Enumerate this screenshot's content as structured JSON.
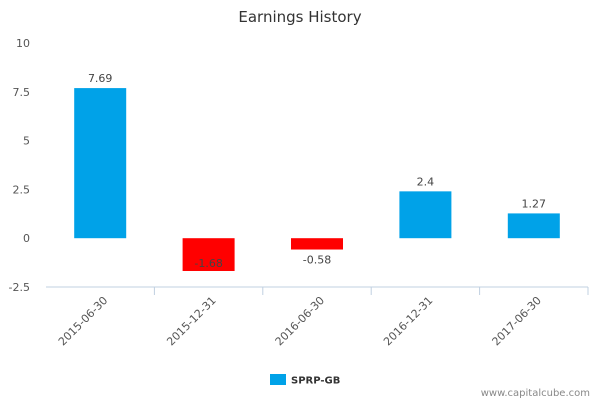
{
  "chart_data": {
    "type": "bar",
    "title": "Earnings History",
    "categories": [
      "2015-06-30",
      "2015-12-31",
      "2016-06-30",
      "2016-12-31",
      "2017-06-30"
    ],
    "series": [
      {
        "name": "SPRP-GB",
        "values": [
          7.69,
          -1.68,
          -0.58,
          2.4,
          1.27
        ],
        "data_labels": [
          "7.69",
          "-1.68",
          "-0.58",
          "2.4",
          "1.27"
        ]
      }
    ],
    "ylim": [
      -2.5,
      10
    ],
    "yticks": [
      10,
      7.5,
      5,
      2.5,
      0,
      -2.5
    ],
    "ytick_labels": [
      "10",
      "7.5",
      "5",
      "2.5",
      "0",
      "-2.5"
    ],
    "grid": false,
    "legend": "bottom-center",
    "colors": {
      "positive": "#00a2e8",
      "negative": "#ff0000",
      "axis": "#c0d0e0"
    }
  },
  "footer": {
    "credit": "www.capitalcube.com"
  }
}
